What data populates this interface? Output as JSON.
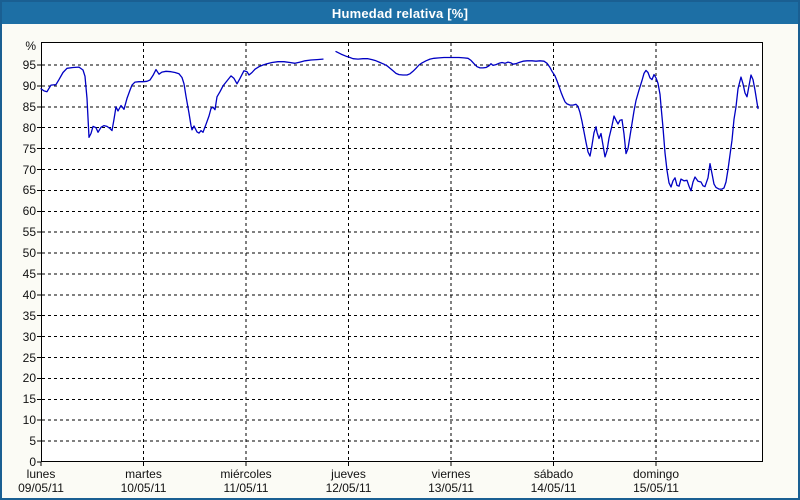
{
  "window": {
    "title": "Humedad relativa [%]"
  },
  "colors": {
    "titlebar": "#1d6fa5",
    "window_border": "#1a5f92",
    "content_bg": "#fbfbf5",
    "plot_bg": "#ffffff",
    "grid": "#000000",
    "axis_text": "#111111",
    "line": "#0000c3",
    "title_text": "#ffffff"
  },
  "chart_data": {
    "type": "line",
    "title": "Humedad relativa [%]",
    "y_unit": "%",
    "xlabel": "",
    "ylabel": "Humedad relativa [%]",
    "grid": "dashed",
    "legend": "none",
    "ylim": [
      0,
      100.5
    ],
    "x_range_days": [
      0,
      7.04
    ],
    "y_ticks": [
      0,
      5,
      10,
      15,
      20,
      25,
      30,
      35,
      40,
      45,
      50,
      55,
      60,
      65,
      70,
      75,
      80,
      85,
      90,
      95
    ],
    "x_days": [
      {
        "name": "lunes",
        "date": "09/05/11"
      },
      {
        "name": "martes",
        "date": "10/05/11"
      },
      {
        "name": "miércoles",
        "date": "11/05/11"
      },
      {
        "name": "jueves",
        "date": "12/05/11"
      },
      {
        "name": "viernes",
        "date": "13/05/11"
      },
      {
        "name": "sábado",
        "date": "14/05/11"
      },
      {
        "name": "domingo",
        "date": "15/05/11"
      }
    ],
    "series": [
      {
        "name": "Humedad relativa",
        "color": "#0000c3",
        "units": "%",
        "x_units": "days since lunes 09/05/11 00:00",
        "segments": [
          [
            [
              0.0,
              89.3
            ],
            [
              0.029,
              88.8
            ],
            [
              0.059,
              88.6
            ],
            [
              0.098,
              90.2
            ],
            [
              0.146,
              90.3
            ],
            [
              0.176,
              91.5
            ],
            [
              0.215,
              93.2
            ],
            [
              0.254,
              94.2
            ],
            [
              0.312,
              94.4
            ],
            [
              0.371,
              94.5
            ],
            [
              0.41,
              93.8
            ],
            [
              0.429,
              92.3
            ],
            [
              0.449,
              87.0
            ],
            [
              0.468,
              77.7
            ],
            [
              0.488,
              78.6
            ],
            [
              0.507,
              80.3
            ],
            [
              0.537,
              80.0
            ],
            [
              0.556,
              78.9
            ],
            [
              0.585,
              80.1
            ],
            [
              0.615,
              80.5
            ],
            [
              0.644,
              80.3
            ],
            [
              0.673,
              79.8
            ],
            [
              0.693,
              79.3
            ],
            [
              0.712,
              82.0
            ],
            [
              0.732,
              85.0
            ],
            [
              0.751,
              84.0
            ],
            [
              0.78,
              85.3
            ],
            [
              0.81,
              84.4
            ],
            [
              0.839,
              87.0
            ],
            [
              0.868,
              89.0
            ],
            [
              0.888,
              90.2
            ],
            [
              0.917,
              90.9
            ],
            [
              0.956,
              91.0
            ],
            [
              0.995,
              91.0
            ],
            [
              1.034,
              91.1
            ],
            [
              1.063,
              91.4
            ],
            [
              1.093,
              92.5
            ],
            [
              1.122,
              93.9
            ],
            [
              1.151,
              92.8
            ],
            [
              1.18,
              93.3
            ],
            [
              1.22,
              93.5
            ],
            [
              1.268,
              93.4
            ],
            [
              1.307,
              93.2
            ],
            [
              1.346,
              92.9
            ],
            [
              1.376,
              92.0
            ],
            [
              1.395,
              90.5
            ],
            [
              1.415,
              87.5
            ],
            [
              1.444,
              83.5
            ],
            [
              1.463,
              80.5
            ],
            [
              1.473,
              79.5
            ],
            [
              1.493,
              80.4
            ],
            [
              1.522,
              79.0
            ],
            [
              1.541,
              78.7
            ],
            [
              1.561,
              79.3
            ],
            [
              1.58,
              78.9
            ],
            [
              1.61,
              80.8
            ],
            [
              1.639,
              82.8
            ],
            [
              1.659,
              84.6
            ],
            [
              1.678,
              84.9
            ],
            [
              1.698,
              84.3
            ],
            [
              1.717,
              87.4
            ],
            [
              1.746,
              88.6
            ],
            [
              1.776,
              90.0
            ],
            [
              1.815,
              91.2
            ],
            [
              1.854,
              92.4
            ],
            [
              1.883,
              91.8
            ],
            [
              1.912,
              90.5
            ],
            [
              1.941,
              91.8
            ],
            [
              1.98,
              93.6
            ],
            [
              2.01,
              93.4
            ],
            [
              2.029,
              92.6
            ],
            [
              2.059,
              93.2
            ],
            [
              2.088,
              94.0
            ],
            [
              2.127,
              94.6
            ],
            [
              2.166,
              95.0
            ],
            [
              2.205,
              95.3
            ],
            [
              2.254,
              95.6
            ],
            [
              2.312,
              95.8
            ],
            [
              2.371,
              95.8
            ],
            [
              2.429,
              95.6
            ],
            [
              2.478,
              95.4
            ],
            [
              2.527,
              95.7
            ],
            [
              2.576,
              96.0
            ],
            [
              2.634,
              96.2
            ],
            [
              2.693,
              96.3
            ],
            [
              2.751,
              96.4
            ]
          ],
          [
            [
              2.878,
              98.2
            ],
            [
              2.927,
              97.6
            ],
            [
              2.976,
              97.1
            ],
            [
              3.005,
              96.9
            ],
            [
              3.044,
              96.5
            ],
            [
              3.093,
              96.4
            ],
            [
              3.141,
              96.5
            ],
            [
              3.19,
              96.5
            ],
            [
              3.229,
              96.3
            ],
            [
              3.268,
              96.0
            ],
            [
              3.307,
              95.6
            ],
            [
              3.346,
              95.2
            ],
            [
              3.376,
              94.8
            ],
            [
              3.405,
              94.2
            ],
            [
              3.434,
              93.6
            ],
            [
              3.463,
              93.0
            ],
            [
              3.493,
              92.7
            ],
            [
              3.532,
              92.6
            ],
            [
              3.571,
              92.6
            ],
            [
              3.6,
              92.9
            ],
            [
              3.629,
              93.5
            ],
            [
              3.659,
              94.2
            ],
            [
              3.688,
              95.0
            ],
            [
              3.717,
              95.5
            ],
            [
              3.756,
              96.0
            ],
            [
              3.795,
              96.4
            ],
            [
              3.834,
              96.6
            ],
            [
              3.883,
              96.7
            ],
            [
              3.932,
              96.8
            ],
            [
              3.98,
              96.8
            ],
            [
              4.029,
              96.8
            ],
            [
              4.078,
              96.8
            ],
            [
              4.127,
              96.7
            ],
            [
              4.166,
              96.6
            ],
            [
              4.195,
              96.1
            ],
            [
              4.224,
              95.3
            ],
            [
              4.254,
              94.6
            ],
            [
              4.283,
              94.3
            ],
            [
              4.312,
              94.3
            ],
            [
              4.341,
              94.4
            ],
            [
              4.371,
              94.8
            ],
            [
              4.39,
              95.3
            ],
            [
              4.41,
              94.9
            ],
            [
              4.439,
              95.1
            ],
            [
              4.468,
              95.4
            ],
            [
              4.498,
              95.6
            ],
            [
              4.527,
              95.4
            ],
            [
              4.556,
              95.7
            ],
            [
              4.585,
              95.5
            ],
            [
              4.605,
              95.2
            ],
            [
              4.634,
              95.3
            ],
            [
              4.663,
              95.6
            ],
            [
              4.702,
              95.9
            ],
            [
              4.741,
              96.0
            ],
            [
              4.79,
              96.0
            ],
            [
              4.829,
              95.9
            ],
            [
              4.868,
              96.0
            ],
            [
              4.907,
              95.9
            ],
            [
              4.937,
              95.4
            ],
            [
              4.966,
              94.4
            ],
            [
              4.985,
              93.5
            ],
            [
              5.015,
              92.4
            ],
            [
              5.034,
              91.2
            ],
            [
              5.054,
              89.9
            ],
            [
              5.073,
              88.5
            ],
            [
              5.093,
              87.3
            ],
            [
              5.112,
              86.2
            ],
            [
              5.132,
              85.7
            ],
            [
              5.161,
              85.4
            ],
            [
              5.19,
              85.4
            ],
            [
              5.22,
              85.6
            ],
            [
              5.239,
              85.1
            ],
            [
              5.259,
              83.6
            ],
            [
              5.278,
              81.5
            ],
            [
              5.298,
              79.0
            ],
            [
              5.317,
              76.5
            ],
            [
              5.337,
              74.2
            ],
            [
              5.356,
              73.2
            ],
            [
              5.376,
              75.8
            ],
            [
              5.395,
              78.8
            ],
            [
              5.415,
              80.2
            ],
            [
              5.424,
              78.9
            ],
            [
              5.444,
              77.4
            ],
            [
              5.463,
              78.6
            ],
            [
              5.483,
              75.8
            ],
            [
              5.502,
              73.0
            ],
            [
              5.522,
              74.5
            ],
            [
              5.541,
              77.5
            ],
            [
              5.571,
              80.5
            ],
            [
              5.59,
              82.8
            ],
            [
              5.61,
              81.8
            ],
            [
              5.629,
              80.9
            ],
            [
              5.649,
              81.8
            ],
            [
              5.668,
              81.9
            ],
            [
              5.688,
              78.5
            ],
            [
              5.707,
              73.8
            ],
            [
              5.727,
              75.0
            ],
            [
              5.746,
              78.0
            ],
            [
              5.766,
              81.0
            ],
            [
              5.785,
              84.0
            ],
            [
              5.805,
              86.5
            ],
            [
              5.834,
              89.0
            ],
            [
              5.863,
              91.3
            ],
            [
              5.883,
              93.0
            ],
            [
              5.902,
              93.7
            ],
            [
              5.922,
              93.2
            ],
            [
              5.941,
              91.9
            ],
            [
              5.961,
              91.5
            ],
            [
              5.98,
              92.7
            ],
            [
              6.0,
              91.9
            ],
            [
              6.02,
              90.6
            ],
            [
              6.039,
              88.0
            ],
            [
              6.049,
              85.2
            ],
            [
              6.068,
              80.0
            ],
            [
              6.088,
              74.0
            ],
            [
              6.107,
              69.8
            ],
            [
              6.127,
              66.8
            ],
            [
              6.146,
              65.8
            ],
            [
              6.166,
              67.3
            ],
            [
              6.185,
              68.0
            ],
            [
              6.205,
              66.2
            ],
            [
              6.224,
              66.0
            ],
            [
              6.244,
              67.7
            ],
            [
              6.273,
              67.3
            ],
            [
              6.302,
              67.4
            ],
            [
              6.322,
              66.0
            ],
            [
              6.341,
              64.9
            ],
            [
              6.361,
              67.0
            ],
            [
              6.38,
              68.2
            ],
            [
              6.41,
              67.2
            ],
            [
              6.439,
              67.0
            ],
            [
              6.459,
              66.1
            ],
            [
              6.478,
              65.9
            ],
            [
              6.507,
              68.0
            ],
            [
              6.527,
              71.4
            ],
            [
              6.546,
              69.0
            ],
            [
              6.566,
              66.5
            ],
            [
              6.585,
              65.7
            ],
            [
              6.615,
              65.3
            ],
            [
              6.644,
              65.3
            ],
            [
              6.663,
              65.6
            ],
            [
              6.683,
              67.0
            ],
            [
              6.702,
              70.0
            ],
            [
              6.722,
              73.5
            ],
            [
              6.741,
              77.0
            ],
            [
              6.761,
              82.0
            ],
            [
              6.78,
              85.0
            ],
            [
              6.8,
              89.3
            ],
            [
              6.82,
              91.3
            ],
            [
              6.829,
              92.1
            ],
            [
              6.849,
              90.5
            ],
            [
              6.868,
              88.3
            ],
            [
              6.888,
              87.4
            ],
            [
              6.907,
              90.0
            ],
            [
              6.927,
              92.6
            ],
            [
              6.946,
              91.5
            ],
            [
              6.966,
              89.0
            ],
            [
              6.985,
              86.0
            ],
            [
              6.995,
              84.6
            ]
          ]
        ]
      }
    ]
  }
}
